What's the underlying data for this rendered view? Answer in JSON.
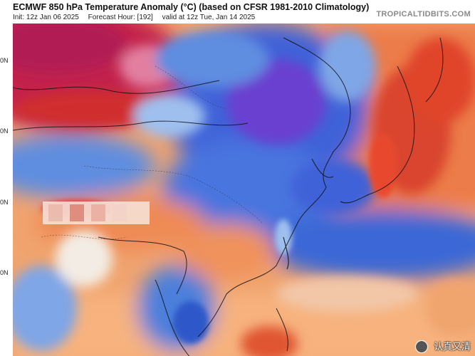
{
  "header": {
    "title": "ECMWF 850 hPa Temperature Anomaly (°C) (based on CFSR 1981-2010 Climatology)",
    "init": "Init: 12z Jan 06 2025",
    "forecast_hour": "Forecast Hour: [192]",
    "valid": "valid at 12z Tue, Jan 14 2025",
    "brand": "TROPICALTIDBITS.COM"
  },
  "lat_labels": [
    "0N",
    "0N",
    "0N",
    "0N"
  ],
  "watermark": {
    "text": "认真又清",
    "icon": "author-avatar-icon"
  },
  "colors": {
    "deep_cold": "#6a3fd0",
    "cold": "#3f62d8",
    "cool": "#7fa6e6",
    "neutral": "#f3ece4",
    "warm": "#f2a56a",
    "hot": "#e0442b",
    "very_hot": "#c2234c",
    "coastline": "#111111"
  }
}
